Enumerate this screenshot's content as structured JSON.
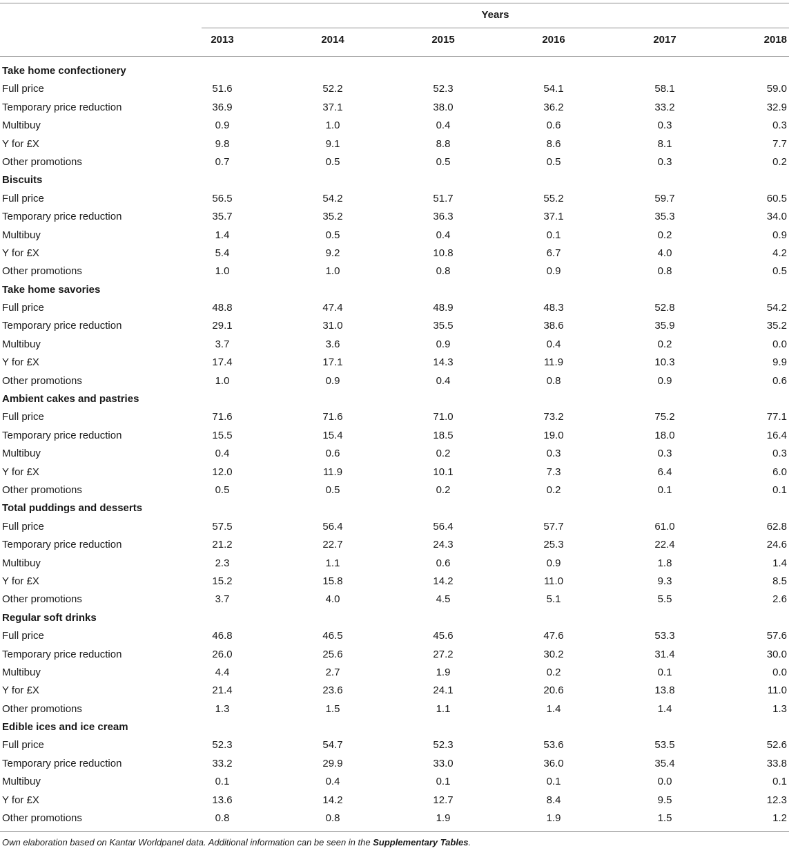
{
  "header": {
    "group_label": "Years",
    "years": [
      "2013",
      "2014",
      "2015",
      "2016",
      "2017",
      "2018"
    ]
  },
  "groups": [
    {
      "title": "Take home confectionery",
      "rows": [
        {
          "label": "Full price",
          "values": [
            "51.6",
            "52.2",
            "52.3",
            "54.1",
            "58.1",
            "59.0"
          ]
        },
        {
          "label": "Temporary price reduction",
          "values": [
            "36.9",
            "37.1",
            "38.0",
            "36.2",
            "33.2",
            "32.9"
          ]
        },
        {
          "label": "Multibuy",
          "values": [
            "0.9",
            "1.0",
            "0.4",
            "0.6",
            "0.3",
            "0.3"
          ]
        },
        {
          "label": "Y for £X",
          "values": [
            "9.8",
            "9.1",
            "8.8",
            "8.6",
            "8.1",
            "7.7"
          ]
        },
        {
          "label": "Other promotions",
          "values": [
            "0.7",
            "0.5",
            "0.5",
            "0.5",
            "0.3",
            "0.2"
          ]
        }
      ]
    },
    {
      "title": "Biscuits",
      "rows": [
        {
          "label": "Full price",
          "values": [
            "56.5",
            "54.2",
            "51.7",
            "55.2",
            "59.7",
            "60.5"
          ]
        },
        {
          "label": "Temporary price reduction",
          "values": [
            "35.7",
            "35.2",
            "36.3",
            "37.1",
            "35.3",
            "34.0"
          ]
        },
        {
          "label": "Multibuy",
          "values": [
            "1.4",
            "0.5",
            "0.4",
            "0.1",
            "0.2",
            "0.9"
          ]
        },
        {
          "label": "Y for £X",
          "values": [
            "5.4",
            "9.2",
            "10.8",
            "6.7",
            "4.0",
            "4.2"
          ]
        },
        {
          "label": "Other promotions",
          "values": [
            "1.0",
            "1.0",
            "0.8",
            "0.9",
            "0.8",
            "0.5"
          ]
        }
      ]
    },
    {
      "title": "Take home savories",
      "rows": [
        {
          "label": "Full price",
          "values": [
            "48.8",
            "47.4",
            "48.9",
            "48.3",
            "52.8",
            "54.2"
          ]
        },
        {
          "label": "Temporary price reduction",
          "values": [
            "29.1",
            "31.0",
            "35.5",
            "38.6",
            "35.9",
            "35.2"
          ]
        },
        {
          "label": "Multibuy",
          "values": [
            "3.7",
            "3.6",
            "0.9",
            "0.4",
            "0.2",
            "0.0"
          ]
        },
        {
          "label": "Y for £X",
          "values": [
            "17.4",
            "17.1",
            "14.3",
            "11.9",
            "10.3",
            "9.9"
          ]
        },
        {
          "label": "Other promotions",
          "values": [
            "1.0",
            "0.9",
            "0.4",
            "0.8",
            "0.9",
            "0.6"
          ]
        }
      ]
    },
    {
      "title": "Ambient cakes and pastries",
      "rows": [
        {
          "label": "Full price",
          "values": [
            "71.6",
            "71.6",
            "71.0",
            "73.2",
            "75.2",
            "77.1"
          ]
        },
        {
          "label": "Temporary price reduction",
          "values": [
            "15.5",
            "15.4",
            "18.5",
            "19.0",
            "18.0",
            "16.4"
          ]
        },
        {
          "label": "Multibuy",
          "values": [
            "0.4",
            "0.6",
            "0.2",
            "0.3",
            "0.3",
            "0.3"
          ]
        },
        {
          "label": "Y for £X",
          "values": [
            "12.0",
            "11.9",
            "10.1",
            "7.3",
            "6.4",
            "6.0"
          ]
        },
        {
          "label": "Other promotions",
          "values": [
            "0.5",
            "0.5",
            "0.2",
            "0.2",
            "0.1",
            "0.1"
          ]
        }
      ]
    },
    {
      "title": "Total puddings and desserts",
      "rows": [
        {
          "label": "Full price",
          "values": [
            "57.5",
            "56.4",
            "56.4",
            "57.7",
            "61.0",
            "62.8"
          ]
        },
        {
          "label": "Temporary price reduction",
          "values": [
            "21.2",
            "22.7",
            "24.3",
            "25.3",
            "22.4",
            "24.6"
          ]
        },
        {
          "label": "Multibuy",
          "values": [
            "2.3",
            "1.1",
            "0.6",
            "0.9",
            "1.8",
            "1.4"
          ]
        },
        {
          "label": "Y for £X",
          "values": [
            "15.2",
            "15.8",
            "14.2",
            "11.0",
            "9.3",
            "8.5"
          ]
        },
        {
          "label": "Other promotions",
          "values": [
            "3.7",
            "4.0",
            "4.5",
            "5.1",
            "5.5",
            "2.6"
          ]
        }
      ]
    },
    {
      "title": "Regular soft drinks",
      "rows": [
        {
          "label": "Full price",
          "values": [
            "46.8",
            "46.5",
            "45.6",
            "47.6",
            "53.3",
            "57.6"
          ]
        },
        {
          "label": "Temporary price reduction",
          "values": [
            "26.0",
            "25.6",
            "27.2",
            "30.2",
            "31.4",
            "30.0"
          ]
        },
        {
          "label": "Multibuy",
          "values": [
            "4.4",
            "2.7",
            "1.9",
            "0.2",
            "0.1",
            "0.0"
          ]
        },
        {
          "label": "Y for £X",
          "values": [
            "21.4",
            "23.6",
            "24.1",
            "20.6",
            "13.8",
            "11.0"
          ]
        },
        {
          "label": "Other promotions",
          "values": [
            "1.3",
            "1.5",
            "1.1",
            "1.4",
            "1.4",
            "1.3"
          ]
        }
      ]
    },
    {
      "title": "Edible ices and ice cream",
      "rows": [
        {
          "label": "Full price",
          "values": [
            "52.3",
            "54.7",
            "52.3",
            "53.6",
            "53.5",
            "52.6"
          ]
        },
        {
          "label": "Temporary price reduction",
          "values": [
            "33.2",
            "29.9",
            "33.0",
            "36.0",
            "35.4",
            "33.8"
          ]
        },
        {
          "label": "Multibuy",
          "values": [
            "0.1",
            "0.4",
            "0.1",
            "0.1",
            "0.0",
            "0.1"
          ]
        },
        {
          "label": "Y for £X",
          "values": [
            "13.6",
            "14.2",
            "12.7",
            "8.4",
            "9.5",
            "12.3"
          ]
        },
        {
          "label": "Other promotions",
          "values": [
            "0.8",
            "0.8",
            "1.9",
            "1.9",
            "1.5",
            "1.2"
          ]
        }
      ]
    }
  ],
  "footnote": {
    "text": "Own elaboration based on Kantar Worldpanel data. Additional information can be seen in the ",
    "link": "Supplementary Tables",
    "end": "."
  }
}
